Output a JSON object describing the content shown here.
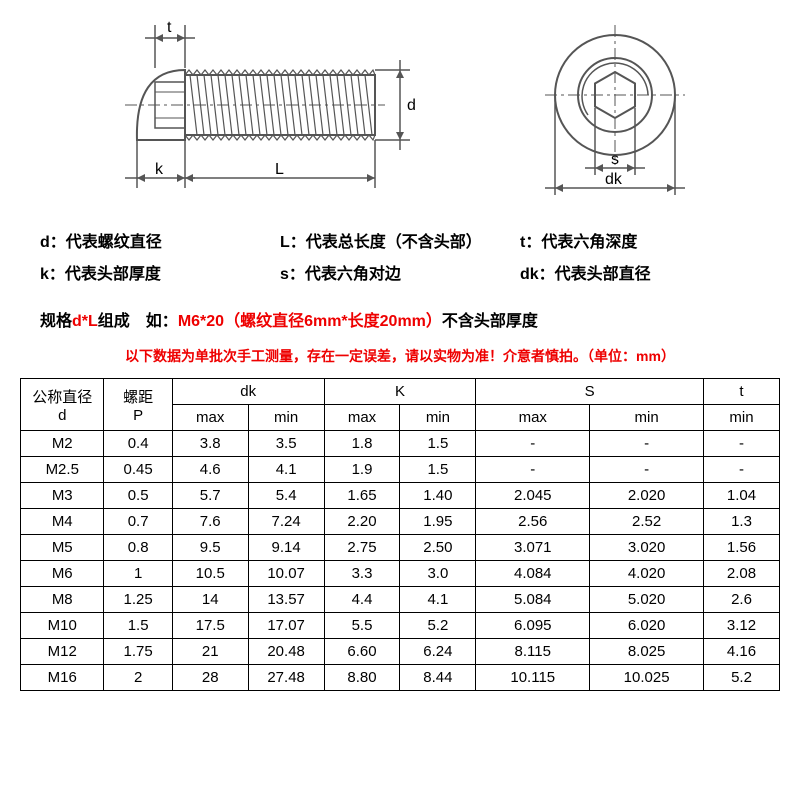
{
  "diagram": {
    "labels": {
      "t": "t",
      "d": "d",
      "k": "k",
      "L": "L",
      "s": "s",
      "dk": "dk"
    },
    "stroke": "#555555",
    "stroke_width": 2
  },
  "legend": {
    "row1": [
      {
        "sym": "d",
        "txt": "：代表螺纹直径"
      },
      {
        "sym": "L",
        "txt": "：代表总长度（不含头部）"
      },
      {
        "sym": "t",
        "txt": "：代表六角深度"
      }
    ],
    "row2": [
      {
        "sym": "k",
        "txt": "：代表头部厚度"
      },
      {
        "sym": "s",
        "txt": "：代表六角对边"
      },
      {
        "sym": "dk",
        "txt": "：代表头部直径"
      }
    ]
  },
  "spec": {
    "pre": "规格",
    "red1": "d*L",
    "mid": "组成　如：",
    "red2": "M6*20（螺纹直径6mm*长度20mm）",
    "post": "不含头部厚度"
  },
  "warning": "以下数据为单批次手工测量，存在一定误差，请以实物为准！介意者慎拍。（单位：mm）",
  "table": {
    "headers": {
      "d": "公称直径\nd",
      "p": "螺距\nP",
      "dk": "dk",
      "k": "K",
      "s": "S",
      "t": "t",
      "max": "max",
      "min": "min"
    },
    "col_widths": [
      "11%",
      "9%",
      "10%",
      "10%",
      "10%",
      "10%",
      "15%",
      "15%",
      "10%"
    ],
    "rows": [
      [
        "M2",
        "0.4",
        "3.8",
        "3.5",
        "1.8",
        "1.5",
        "-",
        "-",
        "-"
      ],
      [
        "M2.5",
        "0.45",
        "4.6",
        "4.1",
        "1.9",
        "1.5",
        "-",
        "-",
        "-"
      ],
      [
        "M3",
        "0.5",
        "5.7",
        "5.4",
        "1.65",
        "1.40",
        "2.045",
        "2.020",
        "1.04"
      ],
      [
        "M4",
        "0.7",
        "7.6",
        "7.24",
        "2.20",
        "1.95",
        "2.56",
        "2.52",
        "1.3"
      ],
      [
        "M5",
        "0.8",
        "9.5",
        "9.14",
        "2.75",
        "2.50",
        "3.071",
        "3.020",
        "1.56"
      ],
      [
        "M6",
        "1",
        "10.5",
        "10.07",
        "3.3",
        "3.0",
        "4.084",
        "4.020",
        "2.08"
      ],
      [
        "M8",
        "1.25",
        "14",
        "13.57",
        "4.4",
        "4.1",
        "5.084",
        "5.020",
        "2.6"
      ],
      [
        "M10",
        "1.5",
        "17.5",
        "17.07",
        "5.5",
        "5.2",
        "6.095",
        "6.020",
        "3.12"
      ],
      [
        "M12",
        "1.75",
        "21",
        "20.48",
        "6.60",
        "6.24",
        "8.115",
        "8.025",
        "4.16"
      ],
      [
        "M16",
        "2",
        "28",
        "27.48",
        "8.80",
        "8.44",
        "10.115",
        "10.025",
        "5.2"
      ]
    ]
  },
  "colors": {
    "text": "#000000",
    "red": "#ee0000",
    "border": "#000000",
    "bg": "#ffffff"
  }
}
